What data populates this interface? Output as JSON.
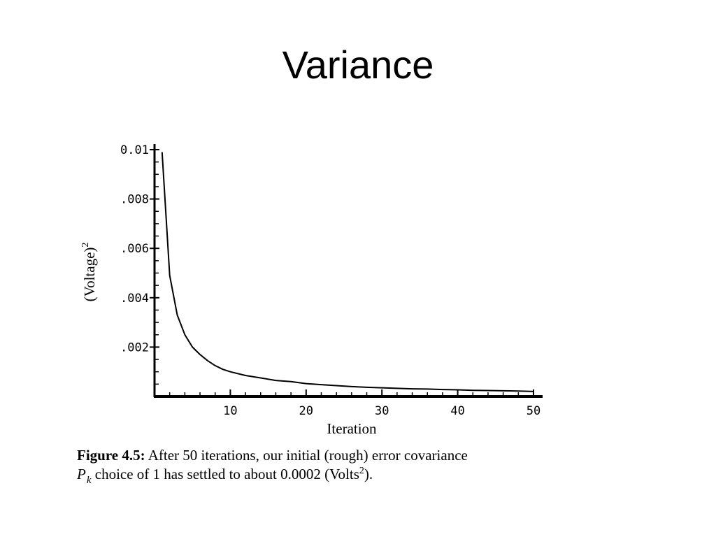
{
  "slide": {
    "title": "Variance"
  },
  "chart_data": {
    "type": "line",
    "title": "",
    "xlabel": "Iteration",
    "ylabel": "(Voltage)",
    "ylabel_superscript": "2",
    "xlim": [
      0,
      51
    ],
    "ylim": [
      0,
      0.01
    ],
    "x_ticks": [
      10,
      20,
      30,
      40,
      50
    ],
    "x_tick_labels": [
      "10",
      "20",
      "30",
      "40",
      "50"
    ],
    "y_ticks": [
      0.002,
      0.004,
      0.006,
      0.008,
      0.01
    ],
    "y_tick_labels": [
      ".002",
      ".004",
      ".006",
      ".008",
      "0.01"
    ],
    "grid": false,
    "legend": "none",
    "line_color": "#000000",
    "series": [
      {
        "x": [
          1,
          2,
          3,
          4,
          5,
          6,
          7,
          8,
          9,
          10,
          12,
          14,
          16,
          18,
          20,
          22,
          24,
          26,
          28,
          30,
          32,
          34,
          36,
          38,
          40,
          42,
          44,
          46,
          48,
          50
        ],
        "values": [
          0.0099,
          0.0049,
          0.0033,
          0.0025,
          0.002,
          0.0017,
          0.00145,
          0.00125,
          0.0011,
          0.001,
          0.00085,
          0.00075,
          0.00065,
          0.0006,
          0.00052,
          0.00048,
          0.00044,
          0.0004,
          0.00037,
          0.00035,
          0.00033,
          0.00031,
          0.0003,
          0.00028,
          0.00027,
          0.00025,
          0.00024,
          0.00023,
          0.00022,
          0.0002
        ]
      }
    ]
  },
  "caption": {
    "label": "Figure 4.5:",
    "line1_text": " After 50 iterations, our initial (rough) error covariance",
    "symbol": "P",
    "symbol_subscript": "k",
    "line2_text": " choice of 1 has settled to about 0.0002 (Volts",
    "line2_superscript": "2",
    "line2_end": ")."
  }
}
